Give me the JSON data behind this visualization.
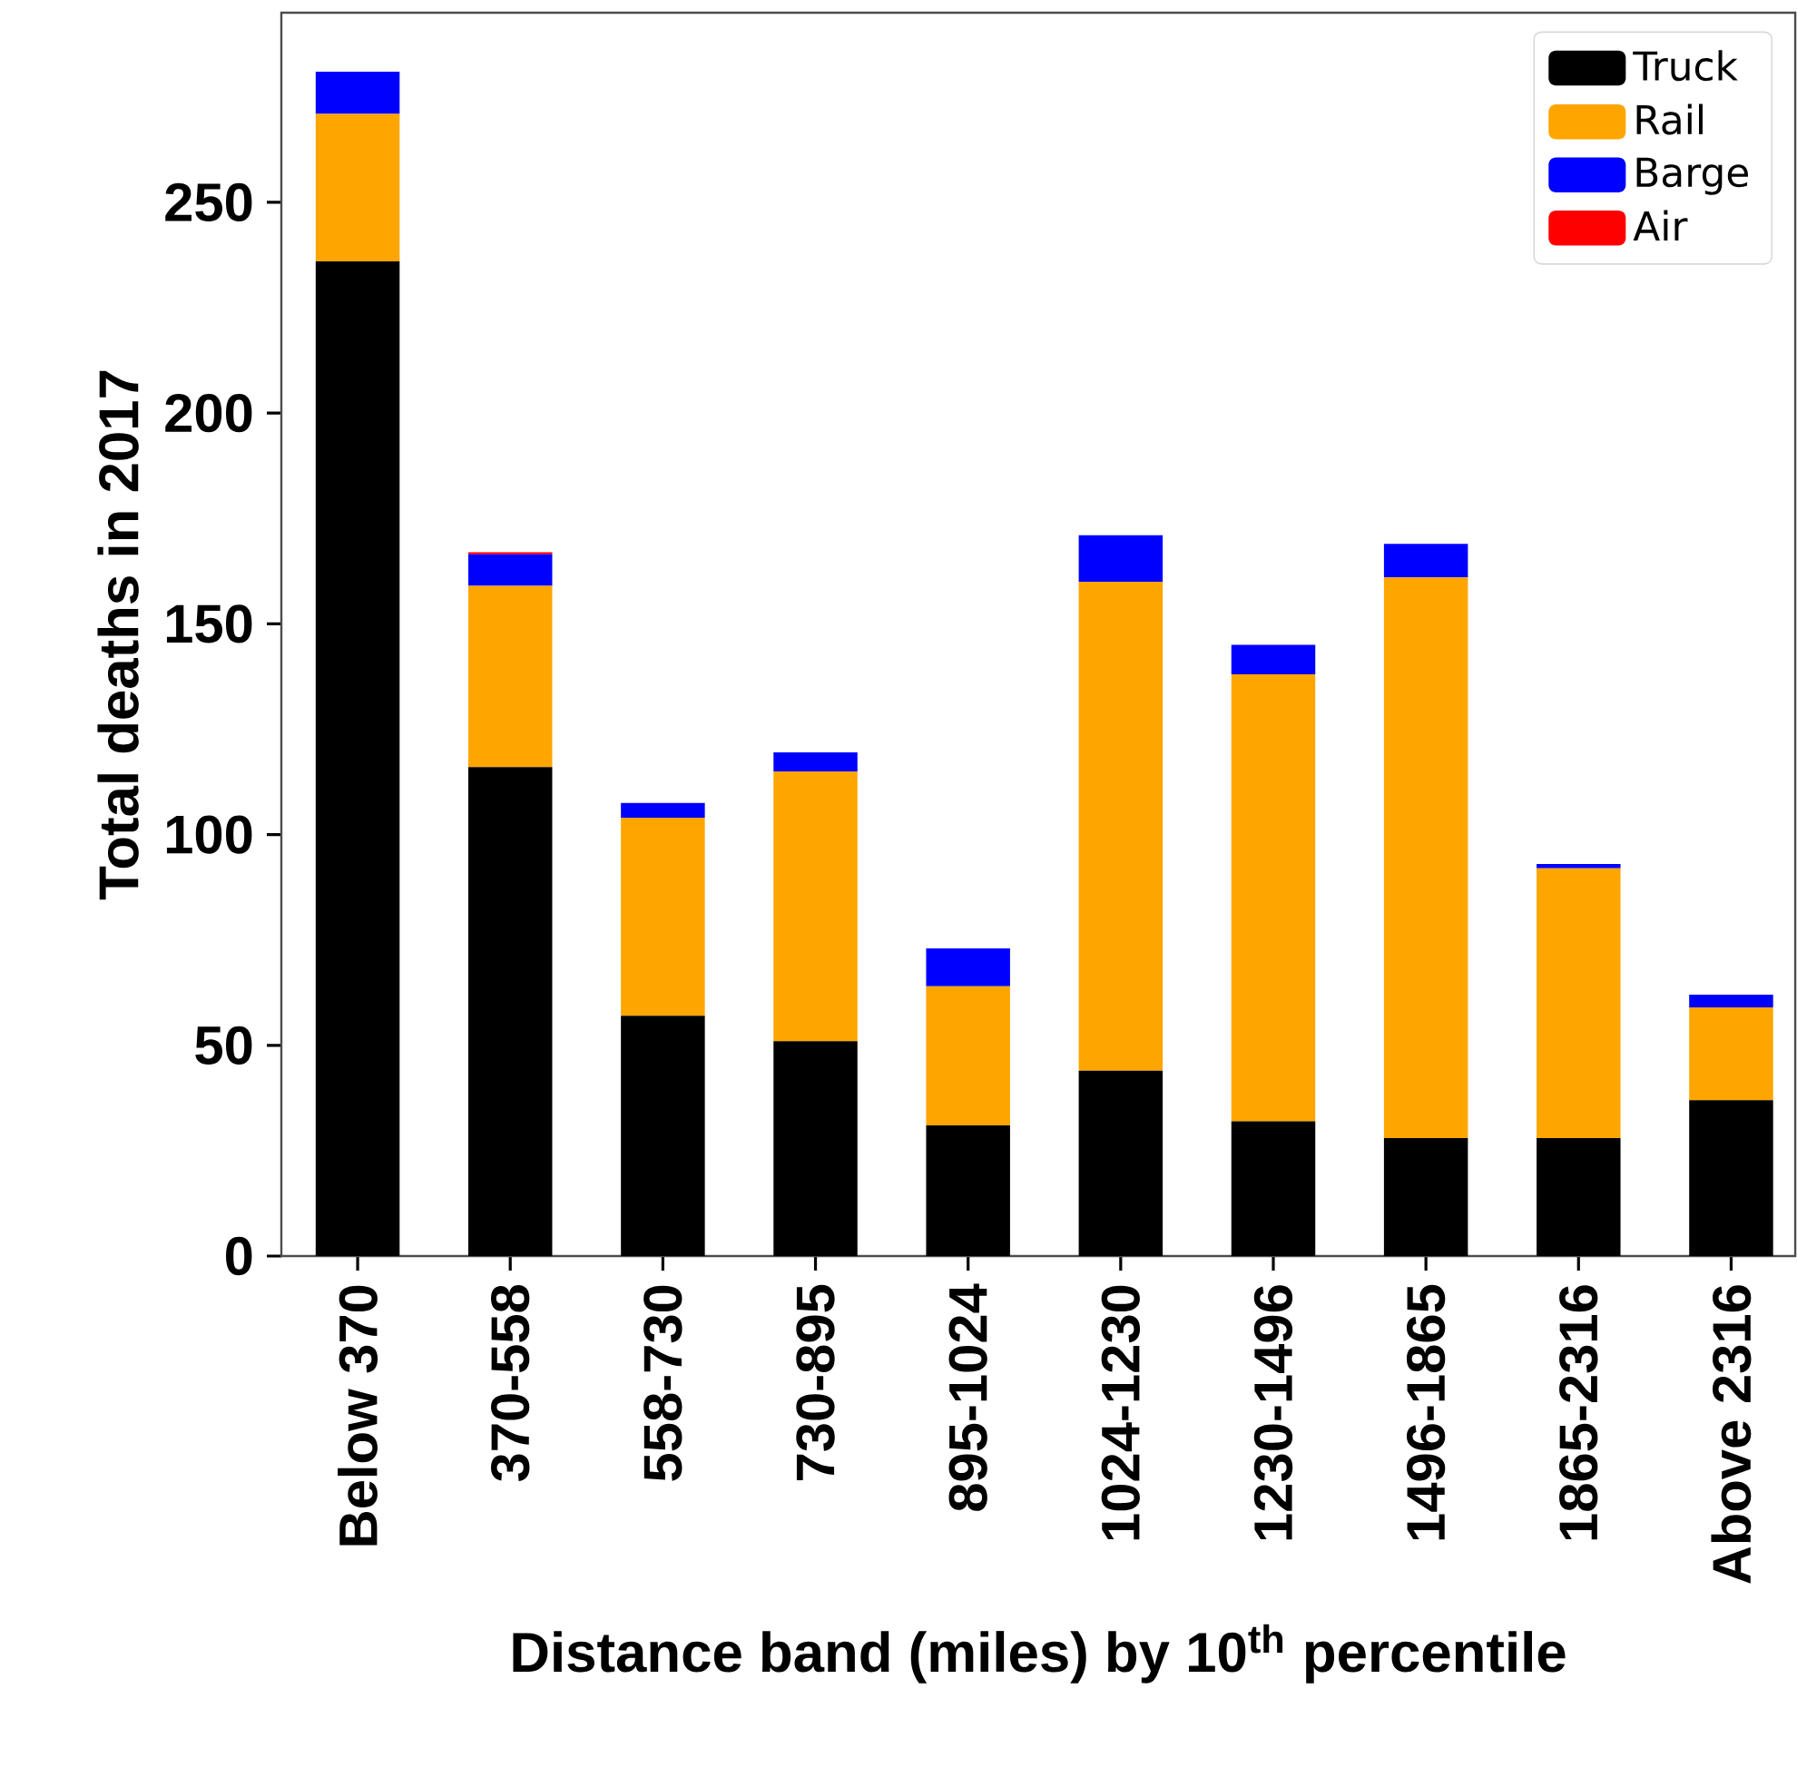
{
  "chart_data": {
    "type": "bar",
    "stacked": true,
    "xlabel": "Distance band (miles) by 10$^{th}$ percentile",
    "ylabel": "Total deaths in 2017",
    "categories": [
      "Below 370",
      "370-558",
      "558-730",
      "730-895",
      "895-1024",
      "1024-1230",
      "1230-1496",
      "1496-1865",
      "1865-2316",
      "Above 2316"
    ],
    "series": [
      {
        "name": "Truck",
        "color": "#000000",
        "values": [
          236,
          116,
          57,
          51,
          31,
          44,
          32,
          28,
          28,
          37
        ]
      },
      {
        "name": "Rail",
        "color": "#ffa500",
        "values": [
          35,
          43,
          47,
          64,
          33,
          116,
          106,
          133,
          64,
          22
        ]
      },
      {
        "name": "Barge",
        "color": "#0000ff",
        "values": [
          10,
          7.5,
          3.5,
          4.5,
          9,
          11,
          7,
          8,
          1,
          3
        ]
      },
      {
        "name": "Air",
        "color": "#ff0000",
        "values": [
          0,
          0.5,
          0,
          0,
          0,
          0,
          0,
          0,
          0,
          0
        ]
      }
    ],
    "ylim": [
      0,
      295
    ],
    "yticks": [
      0,
      50,
      100,
      150,
      200,
      250
    ],
    "legend": "top right",
    "grid": false
  }
}
